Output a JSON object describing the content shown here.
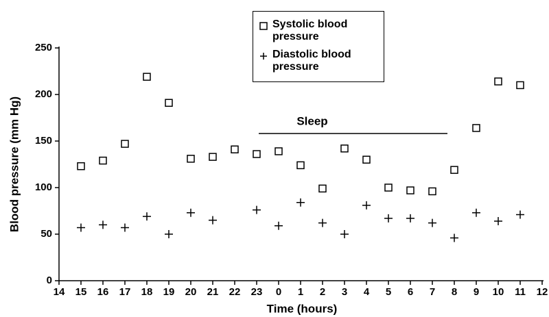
{
  "chart_data": {
    "type": "scatter",
    "xlabel": "Time (hours)",
    "ylabel": "Blood pressure (mm Hg)",
    "categories": [
      "14",
      "15",
      "16",
      "17",
      "18",
      "19",
      "20",
      "21",
      "22",
      "23",
      "0",
      "1",
      "2",
      "3",
      "4",
      "5",
      "6",
      "7",
      "8",
      "9",
      "10",
      "11",
      "12"
    ],
    "series": [
      {
        "name": "Systolic blood pressure",
        "marker": "square",
        "color": "#000000",
        "values": [
          null,
          123,
          129,
          147,
          219,
          191,
          131,
          133,
          141,
          136,
          139,
          124,
          99,
          142,
          130,
          100,
          97,
          96,
          119,
          164,
          214,
          210,
          null
        ]
      },
      {
        "name": "Diastolic blood pressure",
        "marker": "plus",
        "color": "#000000",
        "values": [
          null,
          57,
          60,
          57,
          69,
          50,
          73,
          65,
          null,
          76,
          59,
          84,
          62,
          50,
          81,
          67,
          67,
          62,
          46,
          73,
          64,
          71,
          null
        ]
      }
    ],
    "annotations": [
      {
        "text": "Sleep"
      }
    ],
    "ylim": [
      0,
      250
    ],
    "yticks": [
      0,
      50,
      100,
      150,
      200,
      250
    ],
    "legend": "top"
  }
}
